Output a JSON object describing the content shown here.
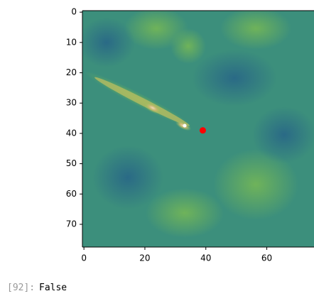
{
  "chart_data": {
    "type": "image",
    "xlim": [
      -0.5,
      77.5
    ],
    "ylim": [
      77.5,
      -0.5
    ],
    "xticks": [
      0,
      20,
      40,
      60
    ],
    "yticks": [
      0,
      10,
      20,
      30,
      40,
      50,
      60,
      70
    ],
    "points": {
      "x": [
        39
      ],
      "y": [
        39
      ],
      "color": "#ff0000"
    }
  },
  "cell_output": {
    "prompt": "[92]:",
    "text": "False"
  }
}
